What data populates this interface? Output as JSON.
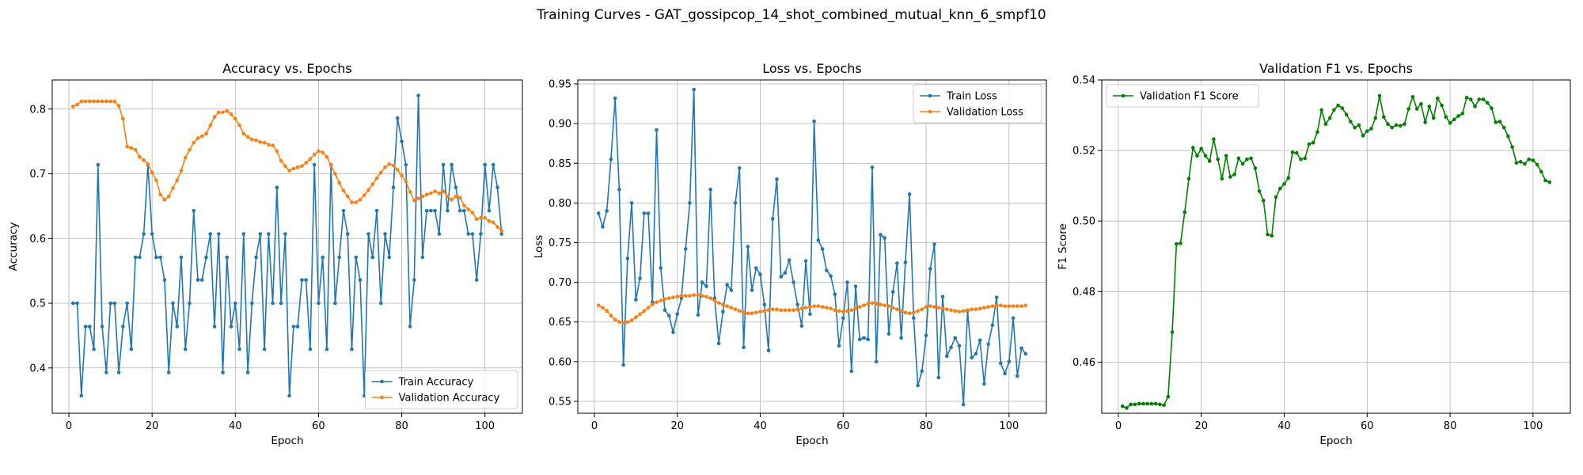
{
  "figure": {
    "suptitle": "Training Curves - GAT_gossipcop_14_shot_combined_mutual_knn_6_smpf10"
  },
  "chart_data": [
    {
      "type": "line",
      "title": "Accuracy vs. Epochs",
      "xlabel": "Epoch",
      "ylabel": "Accuracy",
      "xlim": [
        -4,
        109
      ],
      "ylim": [
        0.33,
        0.845
      ],
      "xticks": [
        0,
        20,
        40,
        60,
        80,
        100
      ],
      "yticks": [
        0.4,
        0.5,
        0.6,
        0.7,
        0.8
      ],
      "ytick_labels": [
        "0.4",
        "0.5",
        "0.6",
        "0.7",
        "0.8"
      ],
      "grid": true,
      "legend": "lower right",
      "x": [
        1,
        2,
        3,
        4,
        5,
        6,
        7,
        8,
        9,
        10,
        11,
        12,
        13,
        14,
        15,
        16,
        17,
        18,
        19,
        20,
        21,
        22,
        23,
        24,
        25,
        26,
        27,
        28,
        29,
        30,
        31,
        32,
        33,
        34,
        35,
        36,
        37,
        38,
        39,
        40,
        41,
        42,
        43,
        44,
        45,
        46,
        47,
        48,
        49,
        50,
        51,
        52,
        53,
        54,
        55,
        56,
        57,
        58,
        59,
        60,
        61,
        62,
        63,
        64,
        65,
        66,
        67,
        68,
        69,
        70,
        71,
        72,
        73,
        74,
        75,
        76,
        77,
        78,
        79,
        80,
        81,
        82,
        83,
        84,
        85,
        86,
        87,
        88,
        89,
        90,
        91,
        92,
        93,
        94,
        95,
        96,
        97,
        98,
        99,
        100,
        101,
        102,
        103,
        104
      ],
      "series": [
        {
          "name": "Train Accuracy",
          "color": "#1f77b4",
          "values": [
            0.5,
            0.5,
            0.357,
            0.464,
            0.464,
            0.429,
            0.714,
            0.464,
            0.393,
            0.5,
            0.5,
            0.393,
            0.464,
            0.5,
            0.429,
            0.571,
            0.571,
            0.607,
            0.714,
            0.607,
            0.571,
            0.571,
            0.536,
            0.393,
            0.5,
            0.464,
            0.571,
            0.429,
            0.5,
            0.643,
            0.536,
            0.536,
            0.571,
            0.607,
            0.464,
            0.607,
            0.393,
            0.571,
            0.464,
            0.5,
            0.429,
            0.607,
            0.393,
            0.5,
            0.571,
            0.607,
            0.429,
            0.607,
            0.5,
            0.679,
            0.5,
            0.607,
            0.357,
            0.464,
            0.464,
            0.536,
            0.536,
            0.429,
            0.714,
            0.5,
            0.571,
            0.429,
            0.714,
            0.5,
            0.571,
            0.643,
            0.607,
            0.429,
            0.571,
            0.536,
            0.357,
            0.607,
            0.571,
            0.643,
            0.5,
            0.607,
            0.571,
            0.679,
            0.786,
            0.75,
            0.714,
            0.464,
            0.536,
            0.821,
            0.571,
            0.643,
            0.643,
            0.643,
            0.607,
            0.714,
            0.643,
            0.714,
            0.679,
            0.643,
            0.643,
            0.607,
            0.607,
            0.536,
            0.607,
            0.714,
            0.643,
            0.714,
            0.679,
            0.607
          ]
        },
        {
          "name": "Validation Accuracy",
          "color": "#ff7f0e",
          "values": [
            0.804,
            0.807,
            0.812,
            0.812,
            0.812,
            0.812,
            0.812,
            0.812,
            0.812,
            0.812,
            0.812,
            0.805,
            0.785,
            0.742,
            0.74,
            0.737,
            0.726,
            0.721,
            0.715,
            0.702,
            0.69,
            0.668,
            0.66,
            0.665,
            0.678,
            0.69,
            0.705,
            0.725,
            0.737,
            0.748,
            0.755,
            0.758,
            0.762,
            0.775,
            0.788,
            0.795,
            0.795,
            0.797,
            0.792,
            0.785,
            0.775,
            0.762,
            0.757,
            0.753,
            0.752,
            0.749,
            0.748,
            0.745,
            0.744,
            0.735,
            0.72,
            0.712,
            0.705,
            0.708,
            0.71,
            0.712,
            0.717,
            0.723,
            0.73,
            0.735,
            0.733,
            0.726,
            0.713,
            0.7,
            0.686,
            0.674,
            0.665,
            0.656,
            0.656,
            0.66,
            0.667,
            0.675,
            0.684,
            0.693,
            0.702,
            0.71,
            0.715,
            0.713,
            0.706,
            0.697,
            0.688,
            0.672,
            0.659,
            0.662,
            0.665,
            0.668,
            0.67,
            0.673,
            0.67,
            0.673,
            0.665,
            0.66,
            0.665,
            0.663,
            0.651,
            0.645,
            0.64,
            0.63,
            0.632,
            0.632,
            0.627,
            0.625,
            0.618,
            0.612
          ]
        }
      ]
    },
    {
      "type": "line",
      "title": "Loss vs. Epochs",
      "xlabel": "Epoch",
      "ylabel": "Loss",
      "xlim": [
        -4,
        109
      ],
      "ylim": [
        0.535,
        0.955
      ],
      "xticks": [
        0,
        20,
        40,
        60,
        80,
        100
      ],
      "yticks": [
        0.55,
        0.6,
        0.65,
        0.7,
        0.75,
        0.8,
        0.85,
        0.9,
        0.95
      ],
      "ytick_labels": [
        "0.55",
        "0.60",
        "0.65",
        "0.70",
        "0.75",
        "0.80",
        "0.85",
        "0.90",
        "0.95"
      ],
      "grid": true,
      "legend": "upper right",
      "x": [
        1,
        2,
        3,
        4,
        5,
        6,
        7,
        8,
        9,
        10,
        11,
        12,
        13,
        14,
        15,
        16,
        17,
        18,
        19,
        20,
        21,
        22,
        23,
        24,
        25,
        26,
        27,
        28,
        29,
        30,
        31,
        32,
        33,
        34,
        35,
        36,
        37,
        38,
        39,
        40,
        41,
        42,
        43,
        44,
        45,
        46,
        47,
        48,
        49,
        50,
        51,
        52,
        53,
        54,
        55,
        56,
        57,
        58,
        59,
        60,
        61,
        62,
        63,
        64,
        65,
        66,
        67,
        68,
        69,
        70,
        71,
        72,
        73,
        74,
        75,
        76,
        77,
        78,
        79,
        80,
        81,
        82,
        83,
        84,
        85,
        86,
        87,
        88,
        89,
        90,
        91,
        92,
        93,
        94,
        95,
        96,
        97,
        98,
        99,
        100,
        101,
        102,
        103,
        104
      ],
      "series": [
        {
          "name": "Train Loss",
          "color": "#1f77b4",
          "values": [
            0.787,
            0.77,
            0.79,
            0.855,
            0.932,
            0.817,
            0.596,
            0.73,
            0.8,
            0.678,
            0.705,
            0.787,
            0.787,
            0.675,
            0.892,
            0.718,
            0.665,
            0.658,
            0.637,
            0.66,
            0.68,
            0.742,
            0.8,
            0.943,
            0.659,
            0.7,
            0.695,
            0.817,
            0.68,
            0.623,
            0.663,
            0.697,
            0.69,
            0.8,
            0.844,
            0.618,
            0.745,
            0.69,
            0.718,
            0.71,
            0.672,
            0.614,
            0.78,
            0.83,
            0.707,
            0.712,
            0.728,
            0.7,
            0.672,
            0.645,
            0.727,
            0.66,
            0.903,
            0.753,
            0.742,
            0.715,
            0.708,
            0.685,
            0.62,
            0.655,
            0.7,
            0.588,
            0.695,
            0.628,
            0.63,
            0.628,
            0.845,
            0.6,
            0.76,
            0.756,
            0.635,
            0.688,
            0.724,
            0.63,
            0.725,
            0.811,
            0.655,
            0.57,
            0.588,
            0.633,
            0.717,
            0.748,
            0.58,
            0.682,
            0.607,
            0.618,
            0.63,
            0.62,
            0.546,
            0.664,
            0.605,
            0.61,
            0.627,
            0.572,
            0.622,
            0.646,
            0.681,
            0.598,
            0.585,
            0.6,
            0.655,
            0.582,
            0.617,
            0.61
          ]
        },
        {
          "name": "Validation Loss",
          "color": "#ff7f0e",
          "values": [
            0.671,
            0.668,
            0.664,
            0.658,
            0.653,
            0.65,
            0.649,
            0.65,
            0.652,
            0.656,
            0.66,
            0.664,
            0.668,
            0.672,
            0.675,
            0.677,
            0.679,
            0.68,
            0.681,
            0.682,
            0.683,
            0.683,
            0.683,
            0.684,
            0.684,
            0.683,
            0.682,
            0.68,
            0.677,
            0.674,
            0.672,
            0.67,
            0.668,
            0.666,
            0.664,
            0.662,
            0.661,
            0.661,
            0.662,
            0.663,
            0.664,
            0.665,
            0.666,
            0.666,
            0.665,
            0.665,
            0.665,
            0.665,
            0.666,
            0.667,
            0.668,
            0.669,
            0.67,
            0.67,
            0.669,
            0.668,
            0.667,
            0.665,
            0.664,
            0.663,
            0.664,
            0.665,
            0.667,
            0.669,
            0.671,
            0.673,
            0.674,
            0.673,
            0.672,
            0.671,
            0.67,
            0.668,
            0.666,
            0.664,
            0.662,
            0.661,
            0.662,
            0.664,
            0.666,
            0.669,
            0.67,
            0.669,
            0.668,
            0.667,
            0.666,
            0.665,
            0.664,
            0.663,
            0.664,
            0.665,
            0.666,
            0.666,
            0.667,
            0.668,
            0.669,
            0.67,
            0.671,
            0.671,
            0.67,
            0.67,
            0.67,
            0.67,
            0.67,
            0.671
          ]
        }
      ]
    },
    {
      "type": "line",
      "title": "Validation F1 vs. Epochs",
      "xlabel": "Epoch",
      "ylabel": "F1 Score",
      "xlim": [
        -4,
        109
      ],
      "ylim": [
        0.4455,
        0.54
      ],
      "xticks": [
        0,
        20,
        40,
        60,
        80,
        100
      ],
      "yticks": [
        0.46,
        0.48,
        0.5,
        0.52,
        0.54
      ],
      "ytick_labels": [
        "0.46",
        "0.48",
        "0.50",
        "0.52",
        "0.54"
      ],
      "grid": true,
      "legend": "upper left",
      "x": [
        1,
        2,
        3,
        4,
        5,
        6,
        7,
        8,
        9,
        10,
        11,
        12,
        13,
        14,
        15,
        16,
        17,
        18,
        19,
        20,
        21,
        22,
        23,
        24,
        25,
        26,
        27,
        28,
        29,
        30,
        31,
        32,
        33,
        34,
        35,
        36,
        37,
        38,
        39,
        40,
        41,
        42,
        43,
        44,
        45,
        46,
        47,
        48,
        49,
        50,
        51,
        52,
        53,
        54,
        55,
        56,
        57,
        58,
        59,
        60,
        61,
        62,
        63,
        64,
        65,
        66,
        67,
        68,
        69,
        70,
        71,
        72,
        73,
        74,
        75,
        76,
        77,
        78,
        79,
        80,
        81,
        82,
        83,
        84,
        85,
        86,
        87,
        88,
        89,
        90,
        91,
        92,
        93,
        94,
        95,
        96,
        97,
        98,
        99,
        100,
        101,
        102,
        103,
        104
      ],
      "series": [
        {
          "name": "Validation F1 Score",
          "color": "#008000",
          "values": [
            0.4475,
            0.447,
            0.448,
            0.448,
            0.4482,
            0.4482,
            0.4482,
            0.4482,
            0.4482,
            0.448,
            0.4478,
            0.4502,
            0.4685,
            0.4935,
            0.4937,
            0.5025,
            0.512,
            0.5208,
            0.5185,
            0.5205,
            0.5185,
            0.517,
            0.5232,
            0.5175,
            0.512,
            0.5185,
            0.5125,
            0.5132,
            0.5178,
            0.5162,
            0.5175,
            0.5178,
            0.515,
            0.5085,
            0.5058,
            0.4962,
            0.4958,
            0.5068,
            0.5092,
            0.5105,
            0.5122,
            0.5195,
            0.5193,
            0.5175,
            0.5178,
            0.5218,
            0.5222,
            0.5252,
            0.5315,
            0.5275,
            0.5292,
            0.5315,
            0.5328,
            0.532,
            0.5302,
            0.5282,
            0.5265,
            0.5272,
            0.5242,
            0.5255,
            0.5262,
            0.5292,
            0.5355,
            0.5295,
            0.5275,
            0.5265,
            0.5272,
            0.527,
            0.5275,
            0.5318,
            0.5352,
            0.5318,
            0.5332,
            0.528,
            0.5325,
            0.5292,
            0.5348,
            0.5328,
            0.5295,
            0.5278,
            0.5288,
            0.5298,
            0.5305,
            0.535,
            0.5345,
            0.5325,
            0.5345,
            0.5345,
            0.5335,
            0.532,
            0.528,
            0.5282,
            0.5265,
            0.524,
            0.521,
            0.5165,
            0.5168,
            0.5162,
            0.5175,
            0.5172,
            0.516,
            0.514,
            0.5115,
            0.511
          ]
        }
      ]
    }
  ]
}
